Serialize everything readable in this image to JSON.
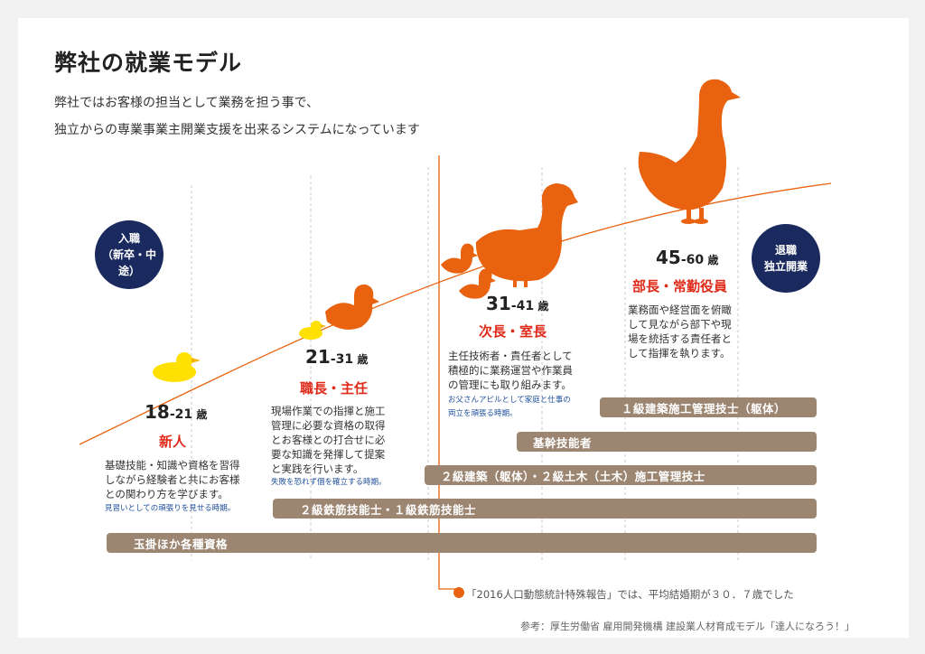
{
  "title": "弊社の就業モデル",
  "intro": [
    "弊社ではお客様の担当として業務を担う事で、",
    "独立からの専業事業主開業支援を出来るシステムになっています"
  ],
  "start_circle": {
    "line1": "入職",
    "line2": "（新卒・中途）"
  },
  "end_circle": {
    "line1": "退職",
    "line2": "独立開業"
  },
  "stages": [
    {
      "age_from": "18",
      "age_to": "-21",
      "age_unit": "歳",
      "role": "新人",
      "desc": [
        "基礎技能・知識や資格を習得",
        "しながら経験者と共にお客様",
        "との関わり方を学びます。"
      ],
      "note": [
        "見習いとしての頑張りを見せる時期。"
      ]
    },
    {
      "age_from": "21",
      "age_to": "-31",
      "age_unit": "歳",
      "role": "職長・主任",
      "desc": [
        "現場作業での指揮と施工",
        "管理に必要な資格の取得",
        "とお客様との打合せに必",
        "要な知識を発揮して提案",
        "と実践を行います。"
      ],
      "note": [
        "失敗を恐れず個を確立する時期。"
      ]
    },
    {
      "age_from": "31",
      "age_to": "-41",
      "age_unit": "歳",
      "role": "次長・室長",
      "desc": [
        "主任技術者・責任者として",
        "積極的に業務運営や作業員",
        "の管理にも取り組みます。"
      ],
      "note": [
        "お父さんアピルとして家庭と仕事の",
        "両立を頑張る時期。"
      ]
    },
    {
      "age_from": "45",
      "age_to": "-60",
      "age_unit": "歳",
      "role": "部長・常勤役員",
      "desc": [
        "業務面や経営面を俯瞰",
        "して見ながら部下や現",
        "場を統括する責任者と",
        "して指揮を執ります。"
      ],
      "note": []
    }
  ],
  "qualification_bars": [
    {
      "label": "１級建築施工管理技士（躯体）"
    },
    {
      "label": "基幹技能者"
    },
    {
      "label": "２級建築（躯体）・２級土木（土木）施工管理技士"
    },
    {
      "label": "２級鉄筋技能士・１級鉄筋技能士"
    },
    {
      "label": "玉掛ほか各種資格"
    }
  ],
  "footnote": "「2016人口動態統計特殊報告」では、平均結婚期が３０．７歳でした",
  "source": "参考：厚生労働省 雇用開発機構 建設業人材育成モデル「達人になろう！」",
  "colors": {
    "navy": "#1b2a5e",
    "orange": "#e8620f",
    "yellow": "#ffe000",
    "red": "#e02a1a",
    "bar": "#9c8672"
  }
}
